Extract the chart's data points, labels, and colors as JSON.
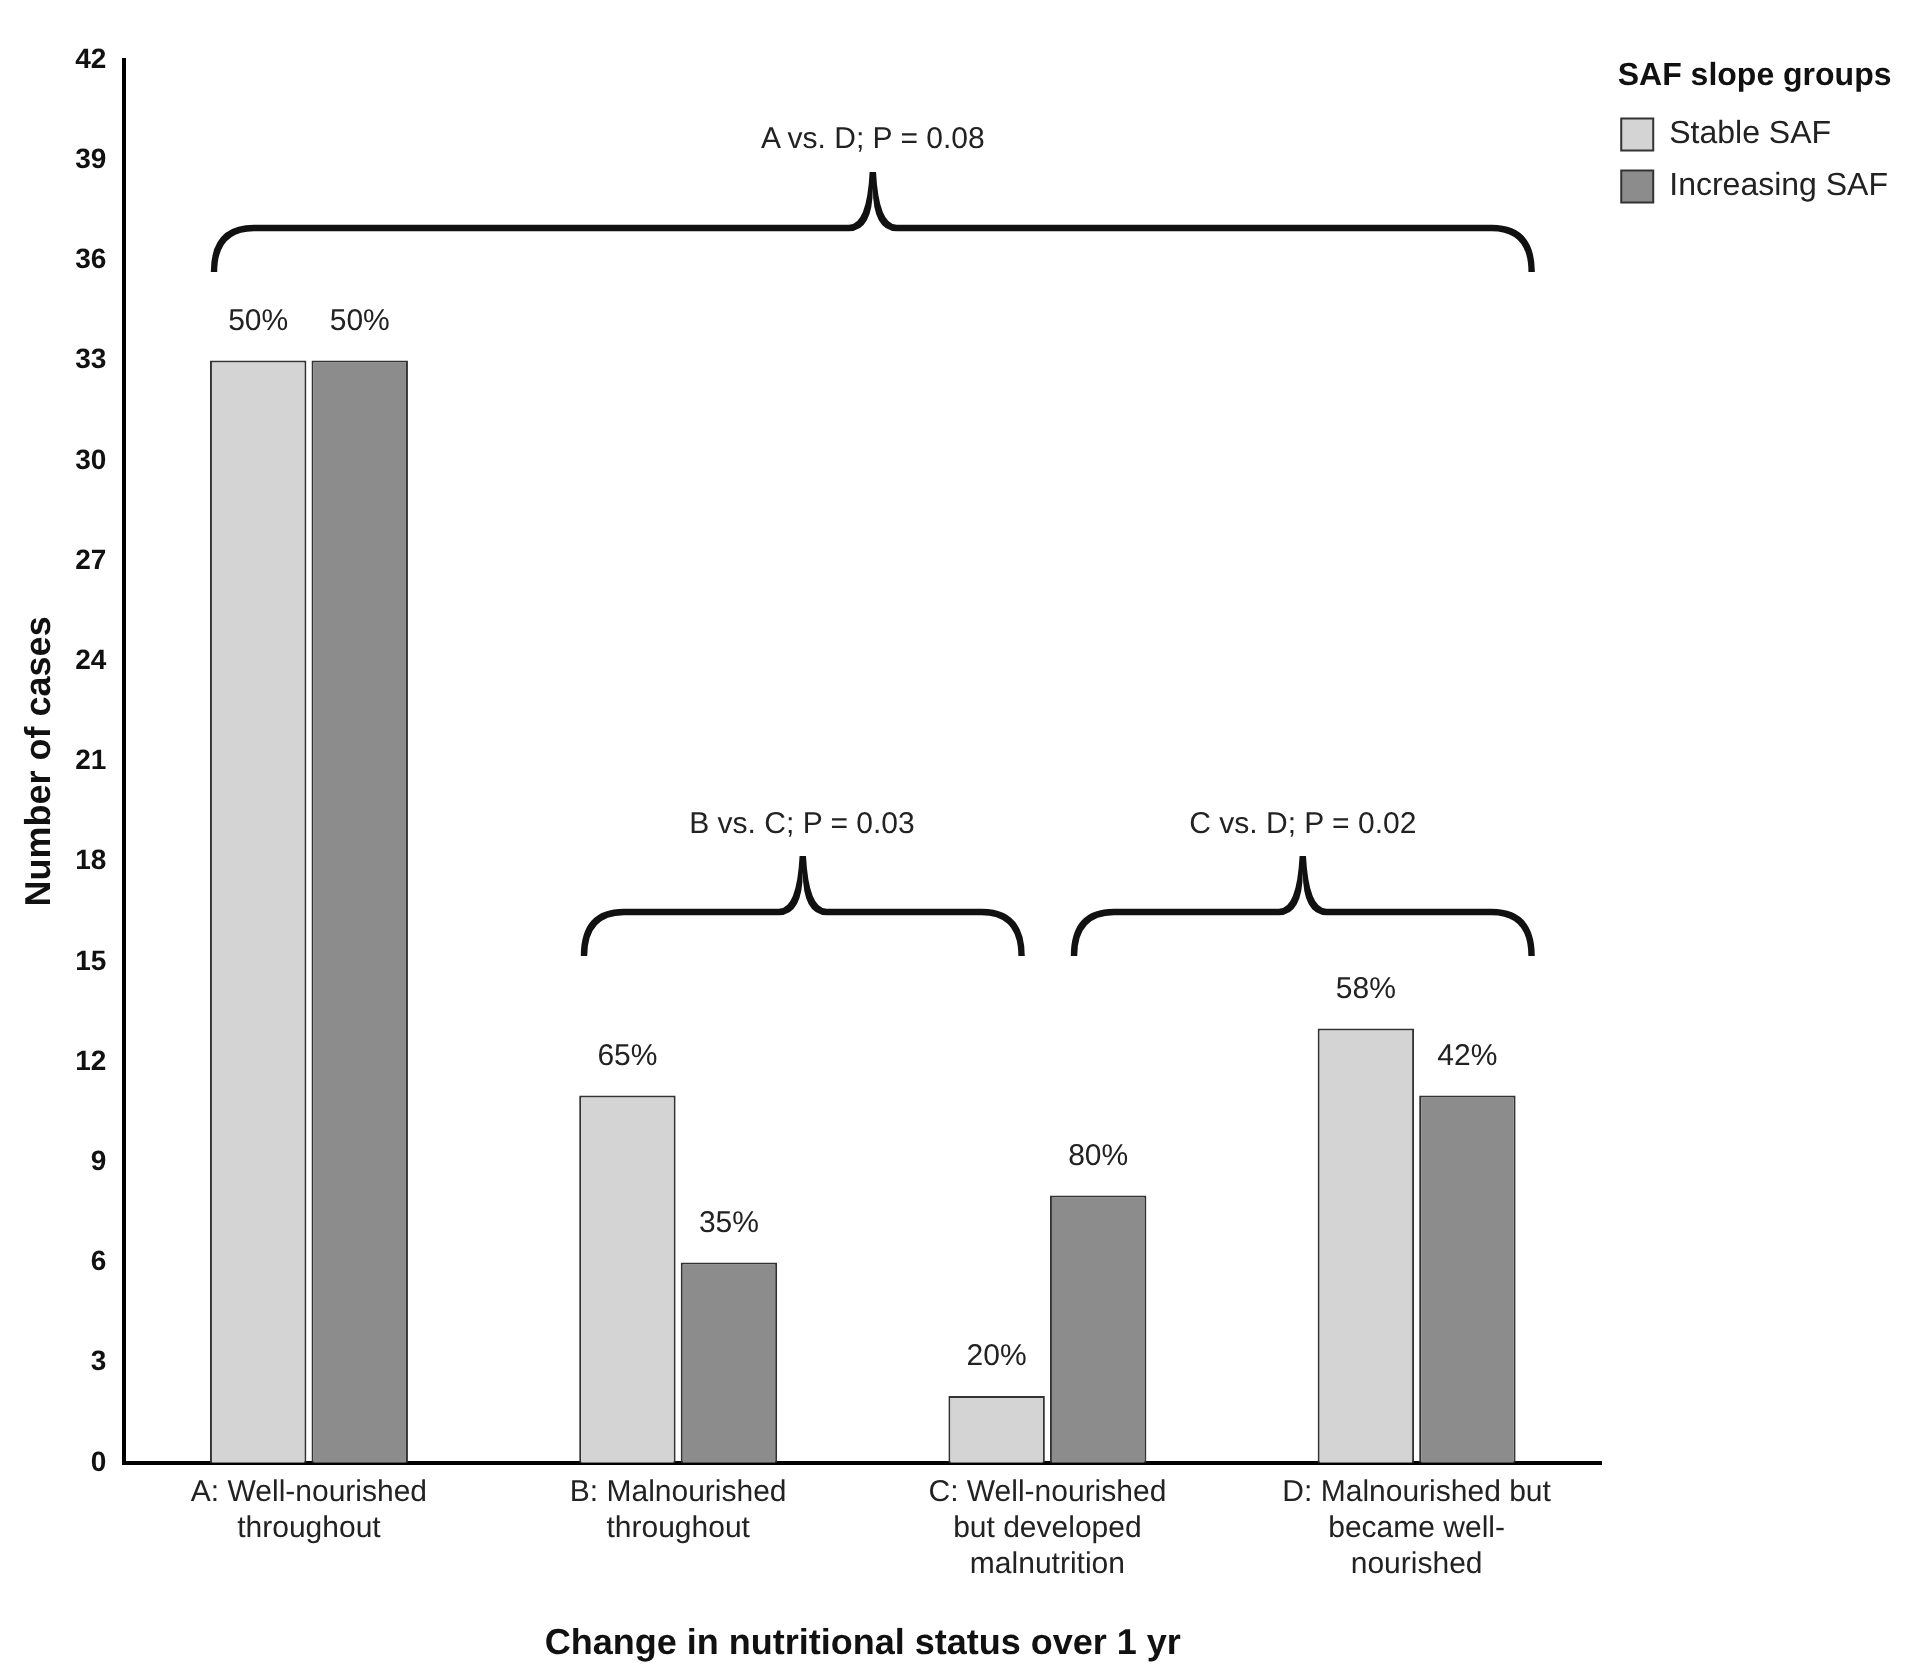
{
  "chart_data": {
    "type": "bar",
    "xlabel": "Change in nutritional status over 1 yr",
    "ylabel": "Number of cases",
    "legend_title": "SAF slope groups",
    "categories": [
      "A: Well-nourished throughout",
      "B: Malnourished throughout",
      "C: Well-nourished but developed malnutrition",
      "D: Malnourished but became well-nourished"
    ],
    "series": [
      {
        "name": "Stable SAF",
        "color": "#d4d4d4",
        "values": [
          33,
          11,
          2,
          13
        ]
      },
      {
        "name": "Increasing SAF",
        "color": "#8c8c8c",
        "values": [
          33,
          6,
          8,
          11
        ]
      }
    ],
    "ylim": [
      0,
      42
    ],
    "yticks": [
      0,
      3,
      6,
      9,
      12,
      15,
      18,
      21,
      24,
      27,
      30,
      33,
      36,
      39,
      42
    ],
    "grid": false,
    "legend": "top right",
    "annotations": [
      "A vs. D; P = 0.08",
      "B vs. C; P = 0.03",
      "C vs. D; P = 0.02",
      {
        "text": "50%",
        "x": "A: Well-nourished throughout",
        "y": 33
      },
      {
        "text": "50%",
        "x": "A: Well-nourished throughout",
        "y": 33
      },
      {
        "text": "65%",
        "x": "B: Malnourished throughout",
        "y": 11
      },
      {
        "text": "35%",
        "x": "B: Malnourished throughout",
        "y": 6
      },
      {
        "text": "20%",
        "x": "C: Well-nourished but developed malnutrition",
        "y": 2
      },
      {
        "text": "80%",
        "x": "C: Well-nourished but developed malnutrition",
        "y": 8
      },
      {
        "text": "58%",
        "x": "D: Malnourished but became well-nourished",
        "y": 13
      },
      {
        "text": "42%",
        "x": "D: Malnourished but became well-nourished",
        "y": 11
      }
    ]
  }
}
